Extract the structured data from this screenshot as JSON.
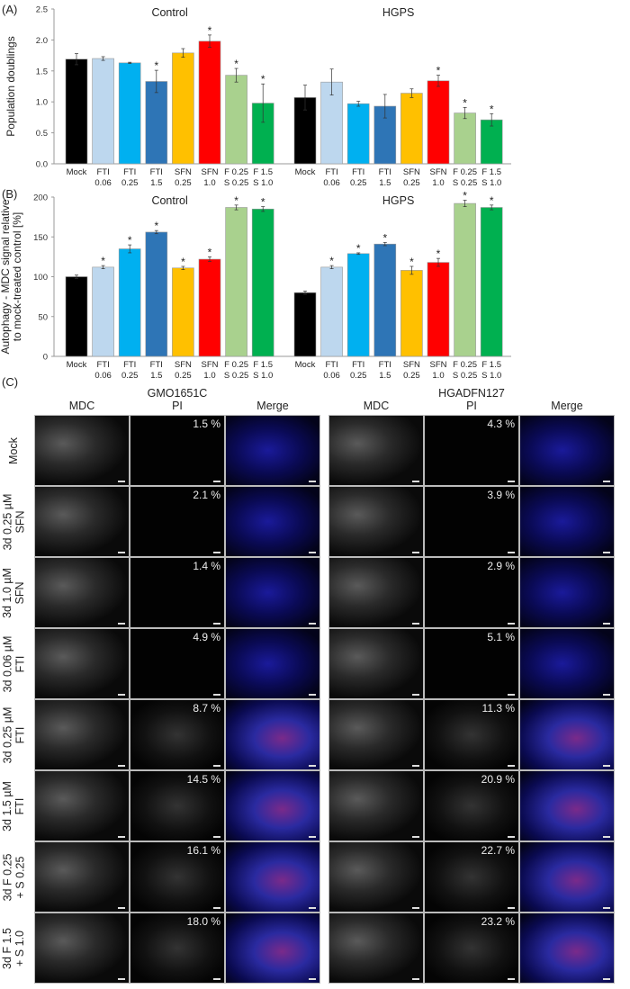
{
  "colors": [
    "#000000",
    "#bdd7ee",
    "#00b0f0",
    "#2e75b6",
    "#ffc000",
    "#ff0000",
    "#a9d18e",
    "#00b050"
  ],
  "categories": [
    [
      "Mock",
      ""
    ],
    [
      "FTI",
      "0.06"
    ],
    [
      "FTI",
      "0.25"
    ],
    [
      "FTI",
      "1.5"
    ],
    [
      "SFN",
      "0.25"
    ],
    [
      "SFN",
      "1.0"
    ],
    [
      "F 0.25",
      "S 0.25"
    ],
    [
      "F 1.5",
      "S 1.0"
    ]
  ],
  "chart_data": [
    {
      "panel": "(A)",
      "type": "bar",
      "ylabel": "Population doublings",
      "ylim": [
        0,
        2.5
      ],
      "yticks": [
        "0.0",
        "0.5",
        "1.0",
        "1.5",
        "2.0",
        "2.5"
      ],
      "groups": [
        {
          "name": "Control",
          "values": [
            1.69,
            1.7,
            1.63,
            1.33,
            1.79,
            1.98,
            1.43,
            0.98
          ],
          "errors": [
            0.09,
            0.03,
            0.01,
            0.18,
            0.07,
            0.1,
            0.11,
            0.31
          ],
          "significant": [
            false,
            false,
            false,
            true,
            false,
            true,
            true,
            true
          ]
        },
        {
          "name": "HGPS",
          "values": [
            1.07,
            1.32,
            0.97,
            0.93,
            1.14,
            1.34,
            0.82,
            0.71
          ],
          "errors": [
            0.2,
            0.21,
            0.04,
            0.19,
            0.07,
            0.09,
            0.09,
            0.1
          ],
          "significant": [
            false,
            false,
            false,
            false,
            false,
            true,
            true,
            true
          ]
        }
      ]
    },
    {
      "panel": "(B)",
      "type": "bar",
      "ylabel": [
        "Autophagy - MDC signal relative",
        "to mock-treated control [%]"
      ],
      "ylim": [
        0,
        200
      ],
      "yticks": [
        "0",
        "50",
        "100",
        "150",
        "200"
      ],
      "groups": [
        {
          "name": "Control",
          "values": [
            100,
            112,
            135,
            156,
            111,
            122,
            187,
            185
          ],
          "errors": [
            2,
            2,
            5,
            2,
            2,
            3,
            3,
            3
          ],
          "significant": [
            false,
            true,
            true,
            true,
            true,
            true,
            true,
            true
          ]
        },
        {
          "name": "HGPS",
          "values": [
            80,
            112,
            129,
            141,
            108,
            118,
            192,
            187
          ],
          "errors": [
            2,
            2,
            1,
            2,
            5,
            5,
            4,
            3
          ],
          "significant": [
            false,
            true,
            true,
            true,
            true,
            true,
            true,
            true
          ]
        }
      ]
    }
  ],
  "star": "*",
  "panelC": {
    "label": "(C)",
    "cell_lines": [
      {
        "name": "GMO1651C",
        "pi": [
          "1.5 %",
          "2.1 %",
          "1.4 %",
          "4.9 %",
          "8.7 %",
          "14.5 %",
          "16.1 %",
          "18.0 %"
        ]
      },
      {
        "name": "HGADFN127",
        "pi": [
          "4.3 %",
          "3.9 %",
          "2.9 %",
          "5.1 %",
          "11.3 %",
          "20.9 %",
          "22.7 %",
          "23.2 %"
        ]
      }
    ],
    "columns": [
      "MDC",
      "PI",
      "Merge"
    ],
    "rows": [
      "Mock",
      "3d 0.25 µM\nSFN",
      "3d 1.0 µM\nSFN",
      "3d 0.06 µM\nFTI",
      "3d 0.25 µM\nFTI",
      "3d 1.5 µM\nFTI",
      "3d F 0.25\n+ S 0.25",
      "3d F 1.5\n+ S 1.0"
    ]
  }
}
